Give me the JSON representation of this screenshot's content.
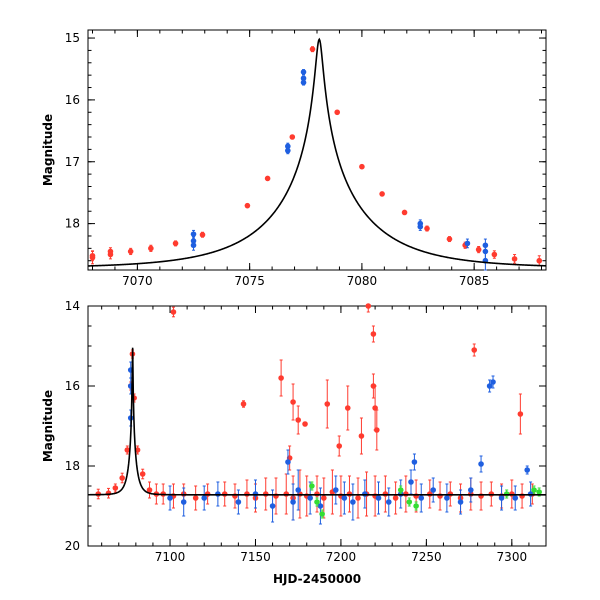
{
  "chart_data": [
    {
      "type": "scatter",
      "panel": "top",
      "title": "",
      "xlabel": "",
      "ylabel": "Magnitude",
      "xlim": [
        7067.8,
        7088.2
      ],
      "ylim": [
        18.75,
        14.87
      ],
      "y_inverted": true,
      "xticks": [
        7070,
        7075,
        7080,
        7085
      ],
      "xtick_labels": [
        "7070",
        "7075",
        "7080",
        "7085"
      ],
      "yticks": [
        15,
        16,
        17,
        18
      ],
      "ytick_labels": [
        "15",
        "16",
        "17",
        "18"
      ],
      "model": {
        "t0": 7078.1,
        "peak_mag": 15.02,
        "base_mag": 18.72,
        "u0": 0.035,
        "tE": 4.2
      },
      "series": [
        {
          "name": "red",
          "color": "#ff3b2f",
          "points": [
            [
              7068.0,
              18.55,
              0.1
            ],
            [
              7068.0,
              18.52,
              0.08
            ],
            [
              7068.8,
              18.5,
              0.07
            ],
            [
              7068.8,
              18.45,
              0.06
            ],
            [
              7069.7,
              18.45,
              0.05
            ],
            [
              7070.6,
              18.4,
              0.05
            ],
            [
              7071.7,
              18.32,
              0.04
            ],
            [
              7072.9,
              18.18,
              0.04
            ],
            [
              7074.9,
              17.71,
              0.03
            ],
            [
              7075.8,
              17.27,
              0.03
            ],
            [
              7076.9,
              16.6,
              0.03
            ],
            [
              7077.8,
              15.18,
              0.04
            ],
            [
              7078.9,
              16.2,
              0.03
            ],
            [
              7080.0,
              17.08,
              0.03
            ],
            [
              7080.9,
              17.52,
              0.03
            ],
            [
              7081.9,
              17.82,
              0.03
            ],
            [
              7082.9,
              18.08,
              0.04
            ],
            [
              7083.9,
              18.25,
              0.04
            ],
            [
              7084.6,
              18.35,
              0.05
            ],
            [
              7085.2,
              18.42,
              0.05
            ],
            [
              7085.9,
              18.5,
              0.06
            ],
            [
              7086.8,
              18.57,
              0.07
            ],
            [
              7087.9,
              18.6,
              0.08
            ]
          ]
        },
        {
          "name": "blue",
          "color": "#1f5fe0",
          "points": [
            [
              7072.5,
              18.17,
              0.06
            ],
            [
              7072.5,
              18.28,
              0.07
            ],
            [
              7072.5,
              18.35,
              0.08
            ],
            [
              7076.7,
              16.75,
              0.05
            ],
            [
              7076.7,
              16.82,
              0.05
            ],
            [
              7077.4,
              15.55,
              0.04
            ],
            [
              7077.4,
              15.65,
              0.04
            ],
            [
              7077.4,
              15.72,
              0.04
            ],
            [
              7082.6,
              18.0,
              0.06
            ],
            [
              7082.6,
              18.05,
              0.06
            ],
            [
              7084.7,
              18.32,
              0.07
            ],
            [
              7085.5,
              18.35,
              0.1
            ],
            [
              7085.5,
              18.45,
              0.12
            ],
            [
              7085.5,
              18.6,
              0.15
            ]
          ]
        }
      ]
    },
    {
      "type": "scatter",
      "panel": "bottom",
      "title": "",
      "xlabel": "HJD-2450000",
      "ylabel": "Magnitude",
      "xlim": [
        7052,
        7320
      ],
      "ylim": [
        20,
        14
      ],
      "y_inverted": true,
      "xticks": [
        7100,
        7150,
        7200,
        7250,
        7300
      ],
      "xtick_labels": [
        "7100",
        "7150",
        "7200",
        "7250",
        "7300"
      ],
      "yticks": [
        14,
        16,
        18,
        20
      ],
      "ytick_labels": [
        "14",
        "16",
        "18",
        "20"
      ],
      "series": [
        {
          "name": "baseline-red",
          "color": "#ff3b2f",
          "points": [
            [
              7058,
              18.7,
              0.12
            ],
            [
              7064,
              18.68,
              0.12
            ],
            [
              7068,
              18.55,
              0.1
            ],
            [
              7072,
              18.3,
              0.12
            ],
            [
              7075,
              17.6,
              0.1
            ],
            [
              7077,
              16.0,
              0.1
            ],
            [
              7078,
              15.2,
              0.1
            ],
            [
              7079,
              16.3,
              0.1
            ],
            [
              7081,
              17.6,
              0.1
            ],
            [
              7084,
              18.2,
              0.12
            ],
            [
              7088,
              18.6,
              0.2
            ],
            [
              7092,
              18.7,
              0.25
            ],
            [
              7096,
              18.7,
              0.25
            ],
            [
              7102,
              18.75,
              0.3
            ],
            [
              7108,
              18.7,
              0.25
            ],
            [
              7115,
              18.8,
              0.3
            ],
            [
              7122,
              18.7,
              0.25
            ],
            [
              7132,
              18.7,
              0.3
            ],
            [
              7138,
              18.75,
              0.3
            ],
            [
              7145,
              18.7,
              0.35
            ],
            [
              7150,
              18.8,
              0.35
            ],
            [
              7156,
              18.7,
              0.4
            ],
            [
              7162,
              18.75,
              0.45
            ],
            [
              7168,
              18.7,
              0.5
            ],
            [
              7172,
              18.8,
              0.55
            ],
            [
              7176,
              18.7,
              0.6
            ],
            [
              7180,
              18.75,
              0.5
            ],
            [
              7186,
              18.7,
              0.45
            ],
            [
              7190,
              18.8,
              0.5
            ],
            [
              7195,
              18.65,
              0.55
            ],
            [
              7200,
              18.75,
              0.5
            ],
            [
              7205,
              18.7,
              0.45
            ],
            [
              7210,
              18.8,
              0.5
            ],
            [
              7215,
              18.7,
              0.55
            ],
            [
              7220,
              18.75,
              0.5
            ],
            [
              7226,
              18.7,
              0.45
            ],
            [
              7232,
              18.8,
              0.4
            ],
            [
              7238,
              18.7,
              0.45
            ],
            [
              7244,
              18.75,
              0.4
            ],
            [
              7252,
              18.7,
              0.35
            ],
            [
              7258,
              18.75,
              0.35
            ],
            [
              7264,
              18.7,
              0.3
            ],
            [
              7270,
              18.8,
              0.35
            ],
            [
              7276,
              18.7,
              0.4
            ],
            [
              7282,
              18.75,
              0.35
            ],
            [
              7288,
              18.7,
              0.3
            ],
            [
              7294,
              18.75,
              0.3
            ],
            [
              7300,
              18.7,
              0.35
            ],
            [
              7306,
              18.75,
              0.3
            ],
            [
              7312,
              18.7,
              0.25
            ]
          ]
        },
        {
          "name": "outliers-red",
          "color": "#ff3b2f",
          "points": [
            [
              7102,
              14.15,
              0.12
            ],
            [
              7143,
              16.45,
              0.08
            ],
            [
              7165,
              15.8,
              0.45
            ],
            [
              7172,
              16.4,
              0.45
            ],
            [
              7175,
              16.85,
              0.35
            ],
            [
              7179,
              16.95,
              0.05
            ],
            [
              7192,
              16.45,
              0.6
            ],
            [
              7204,
              16.55,
              0.55
            ],
            [
              7212,
              17.25,
              0.45
            ],
            [
              7216,
              14.0,
              0.15
            ],
            [
              7219,
              14.7,
              0.2
            ],
            [
              7219,
              16.0,
              0.3
            ],
            [
              7220,
              16.55,
              0.55
            ],
            [
              7221,
              17.1,
              0.5
            ],
            [
              7278,
              15.1,
              0.15
            ],
            [
              7305,
              16.7,
              0.5
            ],
            [
              7170,
              17.8,
              0.3
            ],
            [
              7199,
              17.5,
              0.25
            ]
          ]
        },
        {
          "name": "blue",
          "color": "#1f5fe0",
          "points": [
            [
              7077,
              15.6,
              0.2
            ],
            [
              7077,
              16.0,
              0.2
            ],
            [
              7077,
              16.8,
              0.2
            ],
            [
              7100,
              18.8,
              0.3
            ],
            [
              7108,
              18.9,
              0.35
            ],
            [
              7120,
              18.8,
              0.3
            ],
            [
              7128,
              18.7,
              0.3
            ],
            [
              7140,
              18.9,
              0.3
            ],
            [
              7150,
              18.7,
              0.35
            ],
            [
              7160,
              19.0,
              0.4
            ],
            [
              7169,
              17.9,
              0.3
            ],
            [
              7172,
              18.9,
              0.45
            ],
            [
              7175,
              18.6,
              0.5
            ],
            [
              7182,
              18.8,
              0.4
            ],
            [
              7188,
              19.0,
              0.45
            ],
            [
              7197,
              18.6,
              0.35
            ],
            [
              7202,
              18.8,
              0.4
            ],
            [
              7207,
              18.9,
              0.45
            ],
            [
              7214,
              18.7,
              0.35
            ],
            [
              7222,
              18.8,
              0.4
            ],
            [
              7228,
              18.9,
              0.35
            ],
            [
              7235,
              18.7,
              0.35
            ],
            [
              7241,
              18.4,
              0.3
            ],
            [
              7243,
              17.9,
              0.2
            ],
            [
              7247,
              18.8,
              0.35
            ],
            [
              7254,
              18.6,
              0.3
            ],
            [
              7262,
              18.8,
              0.35
            ],
            [
              7270,
              18.9,
              0.3
            ],
            [
              7276,
              18.6,
              0.3
            ],
            [
              7282,
              17.95,
              0.2
            ],
            [
              7287,
              16.0,
              0.15
            ],
            [
              7289,
              15.9,
              0.15
            ],
            [
              7294,
              18.8,
              0.3
            ],
            [
              7302,
              18.8,
              0.3
            ],
            [
              7309,
              18.1,
              0.1
            ],
            [
              7311,
              18.7,
              0.3
            ]
          ]
        },
        {
          "name": "green",
          "color": "#33dd33",
          "points": [
            [
              7183,
              18.5,
              0.1
            ],
            [
              7186,
              18.9,
              0.1
            ],
            [
              7189,
              19.2,
              0.1
            ],
            [
              7235,
              18.6,
              0.1
            ],
            [
              7240,
              18.9,
              0.1
            ],
            [
              7244,
              19.0,
              0.1
            ],
            [
              7297,
              18.7,
              0.1
            ],
            [
              7313,
              18.6,
              0.1
            ],
            [
              7316,
              18.65,
              0.1
            ]
          ]
        }
      ]
    }
  ]
}
